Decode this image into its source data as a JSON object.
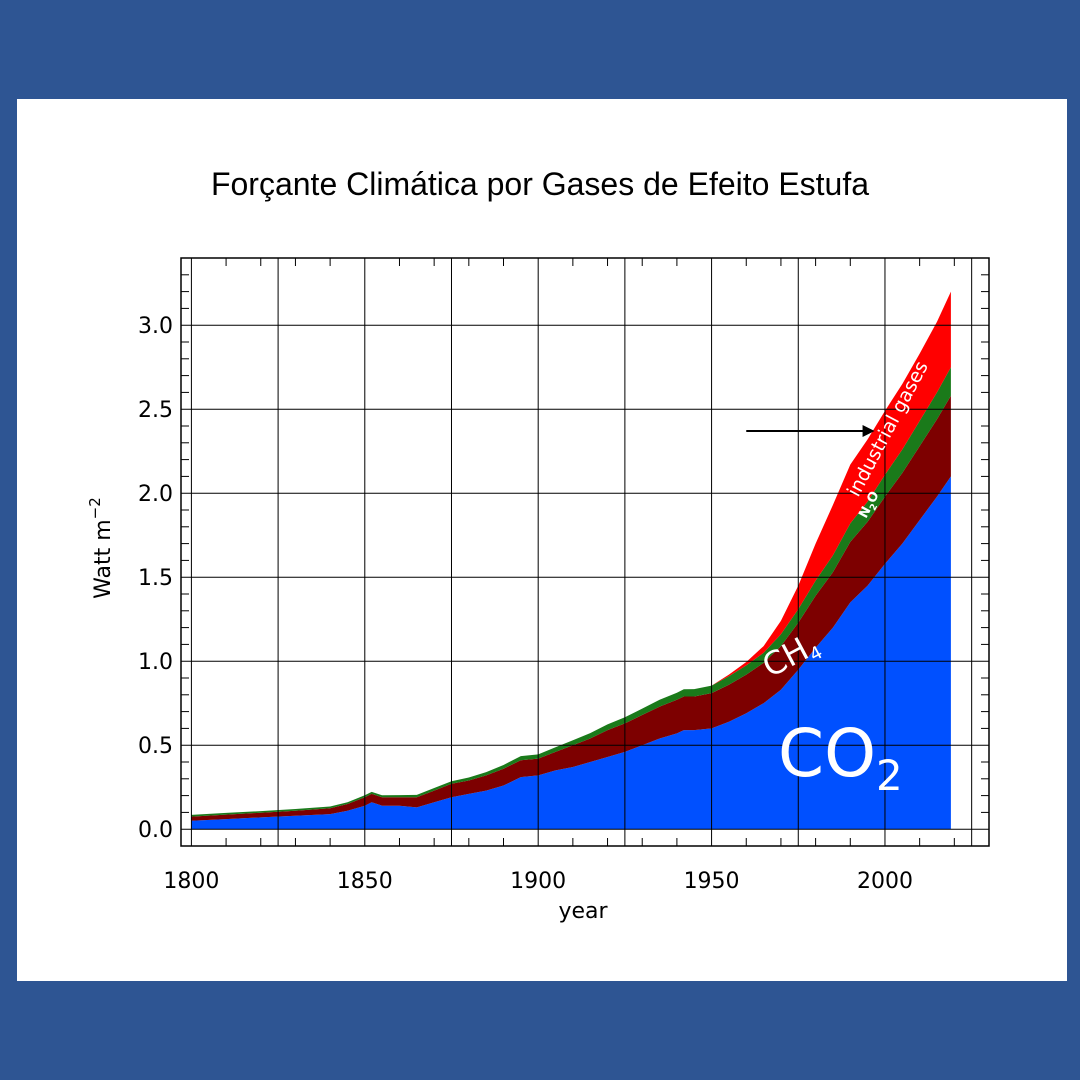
{
  "chart_data": {
    "type": "area",
    "title": "Forçante Climática por Gases de Efeito Estufa",
    "xlabel": "year",
    "ylabel_base": "Watt m",
    "ylabel_sup": "−2",
    "xlim": [
      1797,
      2030
    ],
    "ylim": [
      -0.1,
      3.4
    ],
    "grid": true,
    "x_ticks": [
      1800,
      1850,
      1900,
      1950,
      2000
    ],
    "x_tick_labels": [
      "1800",
      "1850",
      "1900",
      "1950",
      "2000"
    ],
    "y_ticks": [
      0.0,
      0.5,
      1.0,
      1.5,
      2.0,
      2.5,
      3.0
    ],
    "y_tick_labels": [
      "0.0",
      "0.5",
      "1.0",
      "1.5",
      "2.0",
      "2.5",
      "3.0"
    ],
    "x": [
      1800,
      1810,
      1820,
      1830,
      1840,
      1845,
      1850,
      1852,
      1855,
      1860,
      1865,
      1870,
      1875,
      1880,
      1885,
      1890,
      1895,
      1900,
      1905,
      1910,
      1915,
      1920,
      1925,
      1930,
      1935,
      1940,
      1942,
      1945,
      1950,
      1955,
      1960,
      1965,
      1970,
      1975,
      1980,
      1985,
      1990,
      1995,
      2000,
      2005,
      2010,
      2015,
      2019
    ],
    "series": [
      {
        "name": "CO2",
        "label_main": "CO",
        "label_sub": "2",
        "color": "#0050ff",
        "values": [
          0.05,
          0.06,
          0.07,
          0.08,
          0.09,
          0.11,
          0.14,
          0.16,
          0.14,
          0.14,
          0.13,
          0.16,
          0.19,
          0.21,
          0.23,
          0.26,
          0.31,
          0.32,
          0.35,
          0.37,
          0.4,
          0.43,
          0.46,
          0.5,
          0.54,
          0.57,
          0.59,
          0.59,
          0.6,
          0.64,
          0.69,
          0.75,
          0.83,
          0.95,
          1.08,
          1.2,
          1.35,
          1.45,
          1.58,
          1.7,
          1.84,
          1.98,
          2.1
        ]
      },
      {
        "name": "CH4",
        "label_main": "CH",
        "label_sub": "4",
        "color": "#7d0000",
        "values": [
          0.025,
          0.027,
          0.028,
          0.03,
          0.035,
          0.04,
          0.05,
          0.05,
          0.05,
          0.05,
          0.06,
          0.07,
          0.08,
          0.08,
          0.09,
          0.1,
          0.1,
          0.1,
          0.11,
          0.13,
          0.14,
          0.16,
          0.17,
          0.18,
          0.19,
          0.2,
          0.2,
          0.2,
          0.21,
          0.22,
          0.23,
          0.24,
          0.26,
          0.28,
          0.31,
          0.33,
          0.36,
          0.38,
          0.4,
          0.42,
          0.44,
          0.46,
          0.48
        ]
      },
      {
        "name": "N2O",
        "label_main": "N",
        "label_sub": "2",
        "label_tail": "O",
        "color": "#1a7a1a",
        "values": [
          0.01,
          0.01,
          0.01,
          0.01,
          0.01,
          0.01,
          0.012,
          0.012,
          0.012,
          0.013,
          0.014,
          0.015,
          0.016,
          0.018,
          0.02,
          0.022,
          0.025,
          0.025,
          0.028,
          0.03,
          0.032,
          0.034,
          0.036,
          0.038,
          0.04,
          0.042,
          0.043,
          0.044,
          0.045,
          0.05,
          0.055,
          0.06,
          0.07,
          0.08,
          0.09,
          0.1,
          0.11,
          0.12,
          0.13,
          0.14,
          0.15,
          0.16,
          0.17
        ]
      },
      {
        "name": "industrial gases",
        "color": "#ff0000",
        "values": [
          0,
          0,
          0,
          0,
          0,
          0,
          0,
          0,
          0,
          0,
          0,
          0,
          0,
          0,
          0,
          0,
          0,
          0,
          0,
          0,
          0,
          0,
          0,
          0,
          0,
          0,
          0,
          0,
          0,
          0.01,
          0.02,
          0.04,
          0.08,
          0.14,
          0.22,
          0.3,
          0.35,
          0.37,
          0.38,
          0.39,
          0.4,
          0.42,
          0.45
        ]
      }
    ],
    "annotation_arrow": {
      "from": [
        1960,
        2.37
      ],
      "to": [
        1997,
        2.37
      ]
    }
  }
}
